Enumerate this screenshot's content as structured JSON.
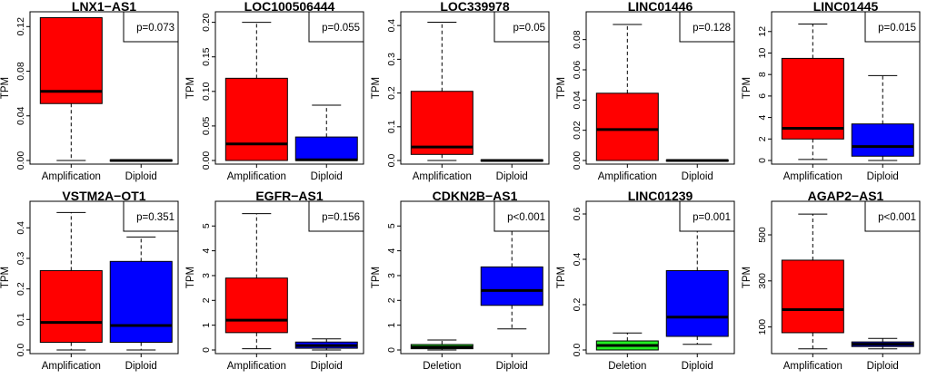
{
  "colors": {
    "Amplification": "#ff0000",
    "Diploid": "#0000ff",
    "Deletion": "#22ee22",
    "stroke": "#000000"
  },
  "chart_data": [
    {
      "type": "box",
      "title": "LNX1−AS1",
      "ylabel": "TPM",
      "pvalue": "p=0.073",
      "ylim": [
        0,
        0.13
      ],
      "yticks": [
        "0.00",
        "0.04",
        "0.08",
        "0.12"
      ],
      "ytick_values": [
        0,
        0.04,
        0.08,
        0.12
      ],
      "categories": [
        "Amplification",
        "Diploid"
      ],
      "boxes": [
        {
          "group": "Amplification",
          "min": 0.0,
          "q1": 0.051,
          "median": 0.062,
          "q3": 0.128,
          "max": 0.128
        },
        {
          "group": "Diploid",
          "min": 0.0,
          "q1": 0.0,
          "median": 0.0,
          "q3": 0.0006,
          "max": 0.0006
        }
      ]
    },
    {
      "type": "box",
      "title": "LOC100506444",
      "ylabel": "TPM",
      "pvalue": "p=0.055",
      "ylim": [
        0,
        0.21
      ],
      "yticks": [
        "0.00",
        "0.05",
        "0.10",
        "0.15",
        "0.20"
      ],
      "ytick_values": [
        0,
        0.05,
        0.1,
        0.15,
        0.2
      ],
      "categories": [
        "Amplification",
        "Diploid"
      ],
      "boxes": [
        {
          "group": "Amplification",
          "min": 0.0,
          "q1": 0.0,
          "median": 0.024,
          "q3": 0.119,
          "max": 0.2
        },
        {
          "group": "Diploid",
          "min": 0.0,
          "q1": 0.0,
          "median": 0.001,
          "q3": 0.034,
          "max": 0.08
        }
      ]
    },
    {
      "type": "box",
      "title": "LOC339978",
      "ylabel": "TPM",
      "pvalue": "p=0.05",
      "ylim": [
        0,
        0.43
      ],
      "yticks": [
        "0.0",
        "0.1",
        "0.2",
        "0.3",
        "0.4"
      ],
      "ytick_values": [
        0,
        0.1,
        0.2,
        0.3,
        0.4
      ],
      "categories": [
        "Amplification",
        "Diploid"
      ],
      "boxes": [
        {
          "group": "Amplification",
          "min": 0.0,
          "q1": 0.018,
          "median": 0.04,
          "q3": 0.205,
          "max": 0.41
        },
        {
          "group": "Diploid",
          "min": 0.0,
          "q1": 0.0,
          "median": 0.0,
          "q3": 0.002,
          "max": 0.002
        }
      ]
    },
    {
      "type": "box",
      "title": "LINC01446",
      "ylabel": "TPM",
      "pvalue": "p=0.128",
      "ylim": [
        0,
        0.096
      ],
      "yticks": [
        "0.00",
        "0.02",
        "0.04",
        "0.06",
        "0.08"
      ],
      "ytick_values": [
        0,
        0.02,
        0.04,
        0.06,
        0.08
      ],
      "categories": [
        "Amplification",
        "Diploid"
      ],
      "boxes": [
        {
          "group": "Amplification",
          "min": 0.0,
          "q1": 0.0,
          "median": 0.0205,
          "q3": 0.0445,
          "max": 0.09
        },
        {
          "group": "Diploid",
          "min": 0.0,
          "q1": 0.0,
          "median": 0.0,
          "q3": 0.0004,
          "max": 0.0004
        }
      ]
    },
    {
      "type": "box",
      "title": "LINC01445",
      "ylabel": "TPM",
      "pvalue": "p=0.015",
      "ylim": [
        0,
        13.5
      ],
      "yticks": [
        "0",
        "2",
        "4",
        "6",
        "8",
        "10",
        "12"
      ],
      "ytick_values": [
        0,
        2,
        4,
        6,
        8,
        10,
        12
      ],
      "categories": [
        "Amplification",
        "Diploid"
      ],
      "boxes": [
        {
          "group": "Amplification",
          "min": 0.1,
          "q1": 2.0,
          "median": 3.0,
          "q3": 9.5,
          "max": 12.7
        },
        {
          "group": "Diploid",
          "min": 0.0,
          "q1": 0.4,
          "median": 1.3,
          "q3": 3.4,
          "max": 7.9
        }
      ]
    },
    {
      "type": "box",
      "title": "VSTM2A−OT1",
      "ylabel": "TPM",
      "pvalue": "p=0.351",
      "ylim": [
        0,
        0.475
      ],
      "yticks": [
        "0.0",
        "0.1",
        "0.2",
        "0.3",
        "0.4"
      ],
      "ytick_values": [
        0,
        0.1,
        0.2,
        0.3,
        0.4
      ],
      "categories": [
        "Amplification",
        "Diploid"
      ],
      "boxes": [
        {
          "group": "Amplification",
          "min": 0.0,
          "q1": 0.025,
          "median": 0.09,
          "q3": 0.26,
          "max": 0.45
        },
        {
          "group": "Diploid",
          "min": 0.0,
          "q1": 0.025,
          "median": 0.08,
          "q3": 0.29,
          "max": 0.37
        }
      ]
    },
    {
      "type": "box",
      "title": "EGFR−AS1",
      "ylabel": "TPM",
      "pvalue": "p=0.156",
      "ylim": [
        0,
        5.85
      ],
      "yticks": [
        "0",
        "1",
        "2",
        "3",
        "4",
        "5"
      ],
      "ytick_values": [
        0,
        1,
        2,
        3,
        4,
        5
      ],
      "categories": [
        "Amplification",
        "Diploid"
      ],
      "boxes": [
        {
          "group": "Amplification",
          "min": 0.05,
          "q1": 0.7,
          "median": 1.2,
          "q3": 2.9,
          "max": 5.5
        },
        {
          "group": "Diploid",
          "min": 0.0,
          "q1": 0.07,
          "median": 0.18,
          "q3": 0.32,
          "max": 0.45
        }
      ]
    },
    {
      "type": "box",
      "title": "CDKN2B−AS1",
      "ylabel": "TPM",
      "pvalue": "p<0.001",
      "ylim": [
        0,
        5.85
      ],
      "yticks": [
        "0",
        "1",
        "2",
        "3",
        "4",
        "5"
      ],
      "ytick_values": [
        0,
        1,
        2,
        3,
        4,
        5
      ],
      "categories": [
        "Deletion",
        "Diploid"
      ],
      "boxes": [
        {
          "group": "Deletion",
          "min": 0.0,
          "q1": 0.05,
          "median": 0.12,
          "q3": 0.22,
          "max": 0.4
        },
        {
          "group": "Diploid",
          "min": 0.85,
          "q1": 1.8,
          "median": 2.4,
          "q3": 3.35,
          "max": 5.4
        }
      ]
    },
    {
      "type": "box",
      "title": "LINC01239",
      "ylabel": "TPM",
      "pvalue": "p=0.001",
      "ylim": [
        0,
        0.64
      ],
      "yticks": [
        "0.0",
        "0.2",
        "0.4",
        "0.6"
      ],
      "ytick_values": [
        0,
        0.2,
        0.4,
        0.6
      ],
      "categories": [
        "Deletion",
        "Diploid"
      ],
      "boxes": [
        {
          "group": "Deletion",
          "min": 0.0,
          "q1": 0.0,
          "median": 0.02,
          "q3": 0.04,
          "max": 0.075
        },
        {
          "group": "Diploid",
          "min": 0.025,
          "q1": 0.06,
          "median": 0.145,
          "q3": 0.35,
          "max": 0.6
        }
      ]
    },
    {
      "type": "box",
      "title": "AGAP2−AS1",
      "ylabel": "TPM",
      "pvalue": "p<0.001",
      "ylim": [
        0,
        630
      ],
      "yticks": [
        "100",
        "300",
        "500"
      ],
      "ytick_values": [
        100,
        300,
        500
      ],
      "categories": [
        "Amplification",
        "Diploid"
      ],
      "boxes": [
        {
          "group": "Amplification",
          "min": 5,
          "q1": 75,
          "median": 175,
          "q3": 390,
          "max": 590
        },
        {
          "group": "Diploid",
          "min": 5,
          "q1": 15,
          "median": 25,
          "q3": 35,
          "max": 50
        }
      ]
    }
  ]
}
